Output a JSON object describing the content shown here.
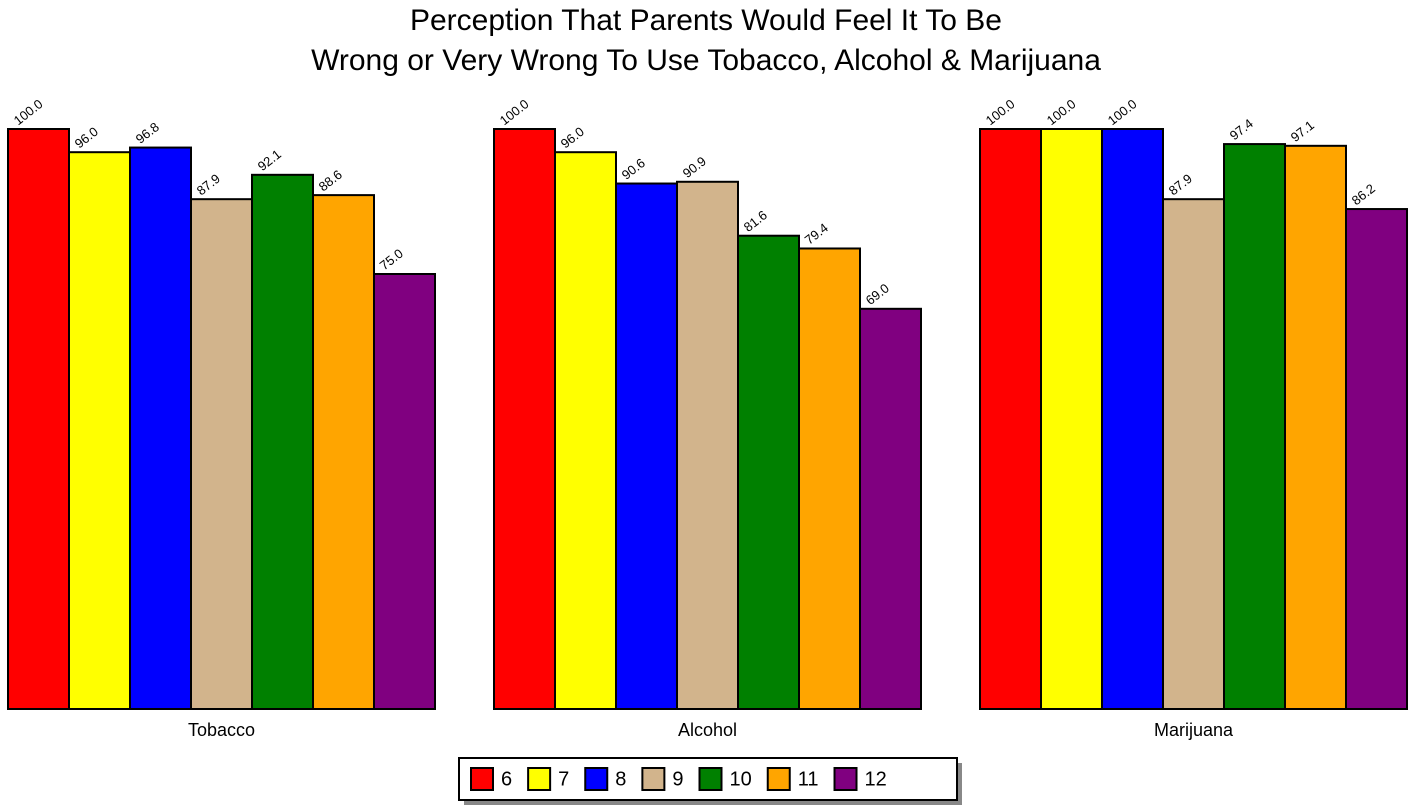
{
  "chart_data": {
    "type": "bar",
    "title": [
      "Perception That Parents Would Feel It To Be",
      "Wrong or Very Wrong To Use Tobacco, Alcohol & Marijuana"
    ],
    "categories": [
      "Tobacco",
      "Alcohol",
      "Marijuana"
    ],
    "ylim": [
      0,
      100
    ],
    "series": [
      {
        "name": "6",
        "color": "#ff0000",
        "values": [
          100,
          100,
          100
        ],
        "value_labels": [
          "100.0",
          "100.0",
          "100.0"
        ]
      },
      {
        "name": "7",
        "color": "#ffff00",
        "values": [
          96,
          96,
          100
        ],
        "value_labels": [
          "96.0",
          "96.0",
          "100.0"
        ]
      },
      {
        "name": "8",
        "color": "#0000ff",
        "values": [
          96.8,
          90.6,
          100
        ],
        "value_labels": [
          "96.8",
          "90.6",
          "100.0"
        ]
      },
      {
        "name": "9",
        "color": "#d2b48c",
        "values": [
          87.9,
          90.9,
          87.9
        ],
        "value_labels": [
          "87.9",
          "90.9",
          "87.9"
        ]
      },
      {
        "name": "10",
        "color": "#008000",
        "values": [
          92.1,
          81.6,
          97.4
        ],
        "value_labels": [
          "92.1",
          "81.6",
          "97.4"
        ]
      },
      {
        "name": "11",
        "color": "#ffa500",
        "values": [
          88.6,
          79.4,
          97.1
        ],
        "value_labels": [
          "88.6",
          "79.4",
          "97.1"
        ]
      },
      {
        "name": "12",
        "color": "#800080",
        "values": [
          75,
          69,
          86.2
        ],
        "value_labels": [
          "75.0",
          "69.0",
          "86.2"
        ]
      }
    ]
  }
}
